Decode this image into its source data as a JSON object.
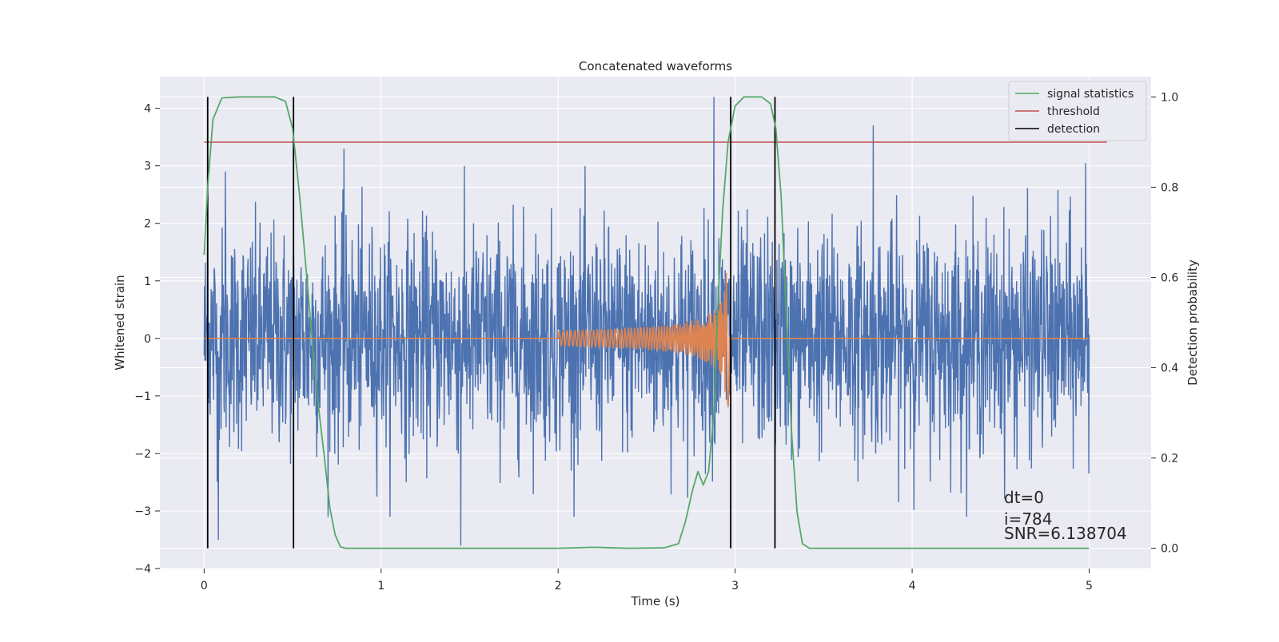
{
  "chart_data": {
    "type": "line",
    "title": "Concatenated waveforms",
    "xlabel": "Time (s)",
    "ylabel": "Whitened strain",
    "y2label": "Detection probability",
    "xlim": [
      -0.25,
      5.35
    ],
    "ylim": [
      -4.0,
      4.55
    ],
    "y2lim": [
      -0.045,
      1.045
    ],
    "xticks": [
      0,
      1,
      2,
      3,
      4,
      5
    ],
    "xtick_labels": [
      "0",
      "1",
      "2",
      "3",
      "4",
      "5"
    ],
    "yticks": [
      -4,
      -3,
      -2,
      -1,
      0,
      1,
      2,
      3,
      4
    ],
    "ytick_labels": [
      "−4",
      "−3",
      "−2",
      "−1",
      "0",
      "1",
      "2",
      "3",
      "4"
    ],
    "y2ticks": [
      0.0,
      0.2,
      0.4,
      0.6,
      0.8,
      1.0
    ],
    "y2tick_labels": [
      "0.0",
      "0.2",
      "0.4",
      "0.6",
      "0.8",
      "1.0"
    ],
    "grid": true,
    "legend_position": "top-right",
    "series": [
      {
        "name": "",
        "axis": "left",
        "color": "#4c72b0",
        "kind": "noise",
        "x_range": [
          0.0,
          5.0
        ],
        "samples": 2500,
        "amplitude_sd": 0.95,
        "spikes": [
          {
            "x": 0.12,
            "y": 2.9
          },
          {
            "x": 0.79,
            "y": 3.3
          },
          {
            "x": 1.45,
            "y": -3.6
          },
          {
            "x": 2.88,
            "y": 4.2
          },
          {
            "x": 3.78,
            "y": 3.7
          },
          {
            "x": 4.98,
            "y": 3.05
          },
          {
            "x": 0.08,
            "y": -3.5
          },
          {
            "x": 0.02,
            "y": 2.25
          }
        ]
      },
      {
        "name": "",
        "axis": "left",
        "color": "#dd8452",
        "kind": "chirp",
        "x_range": [
          0.0,
          5.0
        ],
        "chirp_start": 2.0,
        "chirp_end": 2.97,
        "peak_amplitude": 1.2,
        "points": [
          {
            "x": 2.0,
            "y": 0.0
          },
          {
            "x": 2.5,
            "y": 0.18
          },
          {
            "x": 2.8,
            "y": 0.45
          },
          {
            "x": 2.92,
            "y": 1.0
          },
          {
            "x": 2.96,
            "y": -1.15
          },
          {
            "x": 2.97,
            "y": 0.0
          }
        ]
      },
      {
        "name": "signal statistics",
        "axis": "right",
        "color": "#55a868",
        "points": [
          [
            0.0,
            0.65
          ],
          [
            0.02,
            0.8
          ],
          [
            0.05,
            0.95
          ],
          [
            0.1,
            0.998
          ],
          [
            0.2,
            1.0
          ],
          [
            0.4,
            1.0
          ],
          [
            0.46,
            0.99
          ],
          [
            0.5,
            0.93
          ],
          [
            0.54,
            0.78
          ],
          [
            0.58,
            0.6
          ],
          [
            0.62,
            0.42
          ],
          [
            0.65,
            0.3
          ],
          [
            0.68,
            0.2
          ],
          [
            0.71,
            0.09
          ],
          [
            0.74,
            0.03
          ],
          [
            0.77,
            0.003
          ],
          [
            0.8,
            0.0
          ],
          [
            1.5,
            0.0
          ],
          [
            2.0,
            0.0
          ],
          [
            2.2,
            0.002
          ],
          [
            2.4,
            0.0
          ],
          [
            2.6,
            0.001
          ],
          [
            2.68,
            0.01
          ],
          [
            2.72,
            0.06
          ],
          [
            2.76,
            0.13
          ],
          [
            2.79,
            0.17
          ],
          [
            2.82,
            0.14
          ],
          [
            2.85,
            0.17
          ],
          [
            2.88,
            0.3
          ],
          [
            2.9,
            0.52
          ],
          [
            2.93,
            0.75
          ],
          [
            2.96,
            0.9
          ],
          [
            3.0,
            0.98
          ],
          [
            3.05,
            1.0
          ],
          [
            3.15,
            1.0
          ],
          [
            3.2,
            0.985
          ],
          [
            3.23,
            0.93
          ],
          [
            3.26,
            0.78
          ],
          [
            3.28,
            0.6
          ],
          [
            3.3,
            0.42
          ],
          [
            3.32,
            0.25
          ],
          [
            3.35,
            0.08
          ],
          [
            3.38,
            0.01
          ],
          [
            3.42,
            0.0
          ],
          [
            4.0,
            0.0
          ],
          [
            4.5,
            0.0
          ],
          [
            5.0,
            0.0
          ]
        ]
      },
      {
        "name": "threshold",
        "axis": "right",
        "color": "#c44e52",
        "points": [
          [
            0.0,
            0.9
          ],
          [
            5.1,
            0.9
          ]
        ]
      },
      {
        "name": "detection",
        "axis": "right",
        "color": "#000000",
        "vlines": [
          0.02,
          0.505,
          2.975,
          3.225
        ],
        "vline_range": [
          0.0,
          1.0
        ]
      }
    ],
    "annotations": [
      {
        "id": "dt",
        "text": "dt=0",
        "x": 4.5,
        "y": 0.11
      },
      {
        "id": "i",
        "text": "i=784",
        "x": 4.5,
        "y": 0.063
      },
      {
        "id": "snr",
        "text": "SNR=6.138704",
        "x": 4.5,
        "y": 0.023
      }
    ]
  }
}
